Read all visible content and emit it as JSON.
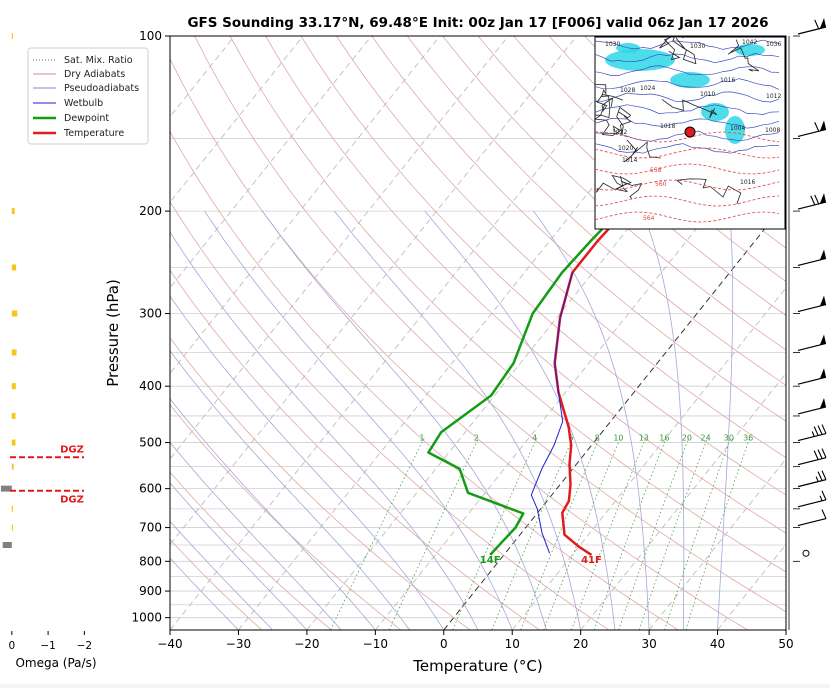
{
  "chart_data": {
    "type": "skew-t",
    "title": "GFS Sounding 33.17°N, 69.48°E Init: 00z Jan 17 [F006] valid 06z Jan 17 2026",
    "xlabel": "Temperature (°C)",
    "ylabel": "Pressure (hPa)",
    "xlim": [
      -40,
      50
    ],
    "ylim": [
      1050,
      100
    ],
    "xticks": [
      "−40",
      "−30",
      "−20",
      "−10",
      "0",
      "10",
      "20",
      "30",
      "40",
      "50"
    ],
    "yticks": [
      "100",
      "200",
      "300",
      "400",
      "500",
      "600",
      "700",
      "800",
      "900",
      "1000"
    ],
    "legend": {
      "placement": "top-left",
      "entries": [
        {
          "label": "Sat. Mix. Ratio",
          "color": "#2e8b2e",
          "style": "dotted"
        },
        {
          "label": "Dry Adiabats",
          "color": "#d08a8a",
          "style": "solid"
        },
        {
          "label": "Pseudoadiabats",
          "color": "#8a8ad0",
          "style": "solid"
        },
        {
          "label": "Wetbulb",
          "color": "#1f1fd0",
          "style": "solid"
        },
        {
          "label": "Dewpoint",
          "color": "#159c15",
          "style": "thick"
        },
        {
          "label": "Temperature",
          "color": "#e31a1c",
          "style": "thick"
        }
      ]
    },
    "mixing_ratio_labels": [
      "1",
      "2",
      "4",
      "6",
      "8",
      "10",
      "13",
      "16",
      "20",
      "24",
      "30",
      "36"
    ],
    "mixing_ratio_values": [
      1,
      2,
      4,
      6,
      8,
      10,
      13,
      16,
      20,
      24,
      30,
      36
    ],
    "series": [
      {
        "name": "Temperature",
        "color": "#e31a1c",
        "points": [
          [
            12.8,
            780
          ],
          [
            10,
            755
          ],
          [
            6.5,
            720
          ],
          [
            3.6,
            660
          ],
          [
            3.2,
            630
          ],
          [
            1.5,
            590
          ],
          [
            -1,
            545
          ],
          [
            -3,
            505
          ],
          [
            -5.5,
            470
          ],
          [
            -11,
            410
          ],
          [
            -15,
            365
          ],
          [
            -19.5,
            305
          ],
          [
            -23,
            255
          ],
          [
            -23,
            225
          ],
          [
            -22.5,
            200
          ],
          [
            -14,
            150
          ],
          [
            -8,
            120
          ],
          [
            -1,
            100
          ]
        ]
      },
      {
        "name": "Dewpoint",
        "color": "#159c15",
        "points": [
          [
            -2,
            780
          ],
          [
            -1.8,
            745
          ],
          [
            -1.5,
            700
          ],
          [
            -2,
            662
          ],
          [
            -12.5,
            610
          ],
          [
            -16.5,
            555
          ],
          [
            -23,
            520
          ],
          [
            -23.5,
            480
          ],
          [
            -20.5,
            415
          ],
          [
            -21,
            365
          ],
          [
            -24,
            300
          ],
          [
            -24.5,
            255
          ],
          [
            -24,
            225
          ],
          [
            -23.3,
            200
          ],
          [
            -27.5,
            150
          ],
          [
            -20,
            100
          ]
        ]
      },
      {
        "name": "Wetbulb",
        "color": "#1f1fd0",
        "points": [
          [
            6.5,
            775
          ],
          [
            3,
            715
          ],
          [
            -0.5,
            650
          ],
          [
            -3,
            615
          ],
          [
            -4.5,
            555
          ],
          [
            -5.5,
            505
          ],
          [
            -7,
            460
          ],
          [
            -11,
            410
          ],
          [
            -15,
            365
          ],
          [
            -19.5,
            305
          ],
          [
            -23,
            255
          ]
        ]
      }
    ],
    "surface_labels": {
      "temperature": "41F",
      "dewpoint": "14F"
    },
    "dgz_label": "DGZ",
    "dgz_pressures": [
      530,
      605
    ],
    "omega": {
      "label": "Omega (Pa/s)",
      "ticks": [
        "0",
        "−1",
        "−2"
      ],
      "xlim": [
        0.05,
        -2.1
      ],
      "bars": [
        {
          "p": 100,
          "v": -0.02
        },
        {
          "p": 200,
          "v": -0.08
        },
        {
          "p": 250,
          "v": -0.12
        },
        {
          "p": 300,
          "v": -0.15
        },
        {
          "p": 350,
          "v": -0.13
        },
        {
          "p": 400,
          "v": -0.11
        },
        {
          "p": 450,
          "v": -0.1
        },
        {
          "p": 500,
          "v": -0.1
        },
        {
          "p": 550,
          "v": -0.05
        },
        {
          "p": 600,
          "v": 0.3
        },
        {
          "p": 650,
          "v": -0.02
        },
        {
          "p": 700,
          "v": -0.02
        },
        {
          "p": 750,
          "v": 0.25
        }
      ],
      "bar_colors": {
        "negative": "#f5c518",
        "positive": "#808080"
      }
    },
    "wind_barbs": [
      {
        "p": 100,
        "flags": 1,
        "full": 1,
        "half": 0
      },
      {
        "p": 150,
        "flags": 1,
        "full": 1,
        "half": 0
      },
      {
        "p": 200,
        "flags": 1,
        "full": 2,
        "half": 0
      },
      {
        "p": 250,
        "flags": 1,
        "full": 0,
        "half": 0
      },
      {
        "p": 300,
        "flags": 1,
        "full": 0,
        "half": 0
      },
      {
        "p": 350,
        "flags": 1,
        "full": 0,
        "half": 0
      },
      {
        "p": 400,
        "flags": 1,
        "full": 0,
        "half": 0
      },
      {
        "p": 450,
        "flags": 1,
        "full": 0,
        "half": 0
      },
      {
        "p": 500,
        "flags": 0,
        "full": 3,
        "half": 1
      },
      {
        "p": 550,
        "flags": 0,
        "full": 3,
        "half": 0
      },
      {
        "p": 600,
        "flags": 0,
        "full": 2,
        "half": 1
      },
      {
        "p": 650,
        "flags": 0,
        "full": 1,
        "half": 1
      },
      {
        "p": 700,
        "flags": 0,
        "full": 1,
        "half": 0
      },
      {
        "p": 800,
        "calm": true
      }
    ],
    "map_inset": {
      "marker": {
        "lat": 33.17,
        "lon": 69.48,
        "color": "#e31a1c"
      },
      "isobar_labels": [
        "1030",
        "1028",
        "1024",
        "1022",
        "1020",
        "1014",
        "1016",
        "1004",
        "1008",
        "1012",
        "1018",
        "1042",
        "1036",
        "1030",
        "1010",
        "1016"
      ],
      "height_labels": [
        "560",
        "564",
        "558"
      ]
    }
  }
}
